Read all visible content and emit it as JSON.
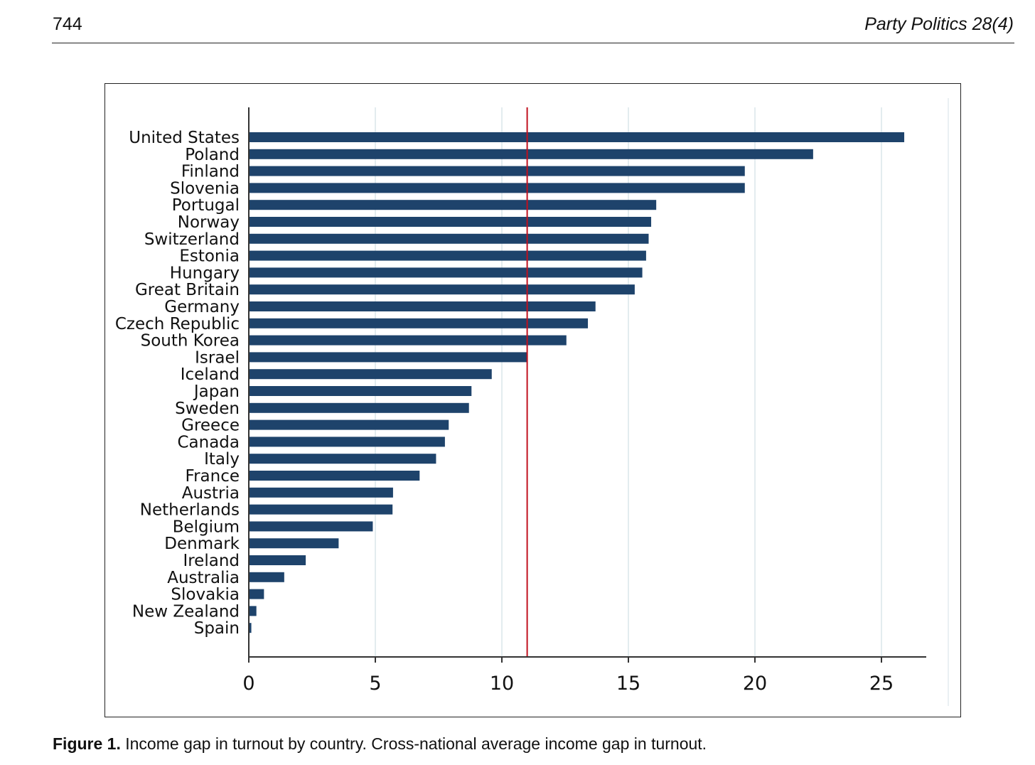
{
  "header": {
    "page_number": "744",
    "journal": "Party Politics 28(4)"
  },
  "caption": {
    "label": "Figure 1.",
    "text": "Income gap in turnout by country. Cross-national average income gap in turnout."
  },
  "colors": {
    "bar": "#1e436b",
    "reference_line": "#c0111f",
    "grid": "#e3ecef",
    "axis": "#333333"
  },
  "chart_data": {
    "type": "bar",
    "orientation": "horizontal",
    "title": "",
    "xlabel": "",
    "ylabel": "",
    "xlim": [
      0,
      26.8
    ],
    "x_ticks": [
      0,
      5,
      10,
      15,
      20,
      25
    ],
    "grid": true,
    "reference_line": {
      "value": 11.0
    },
    "categories": [
      "United States",
      "Poland",
      "Finland",
      "Slovenia",
      "Portugal",
      "Norway",
      "Switzerland",
      "Estonia",
      "Hungary",
      "Great Britain",
      "Germany",
      "Czech Republic",
      "South Korea",
      "Israel",
      "Iceland",
      "Japan",
      "Sweden",
      "Greece",
      "Canada",
      "Italy",
      "France",
      "Austria",
      "Netherlands",
      "Belgium",
      "Denmark",
      "Ireland",
      "Australia",
      "Slovakia",
      "New Zealand",
      "Spain"
    ],
    "values": [
      25.9,
      22.3,
      19.6,
      19.6,
      16.1,
      15.9,
      15.8,
      15.7,
      15.55,
      15.25,
      13.7,
      13.4,
      12.55,
      11.0,
      9.6,
      8.8,
      8.7,
      7.9,
      7.75,
      7.4,
      6.75,
      5.7,
      5.68,
      4.9,
      3.55,
      2.25,
      1.4,
      0.6,
      0.3,
      0.1
    ]
  }
}
